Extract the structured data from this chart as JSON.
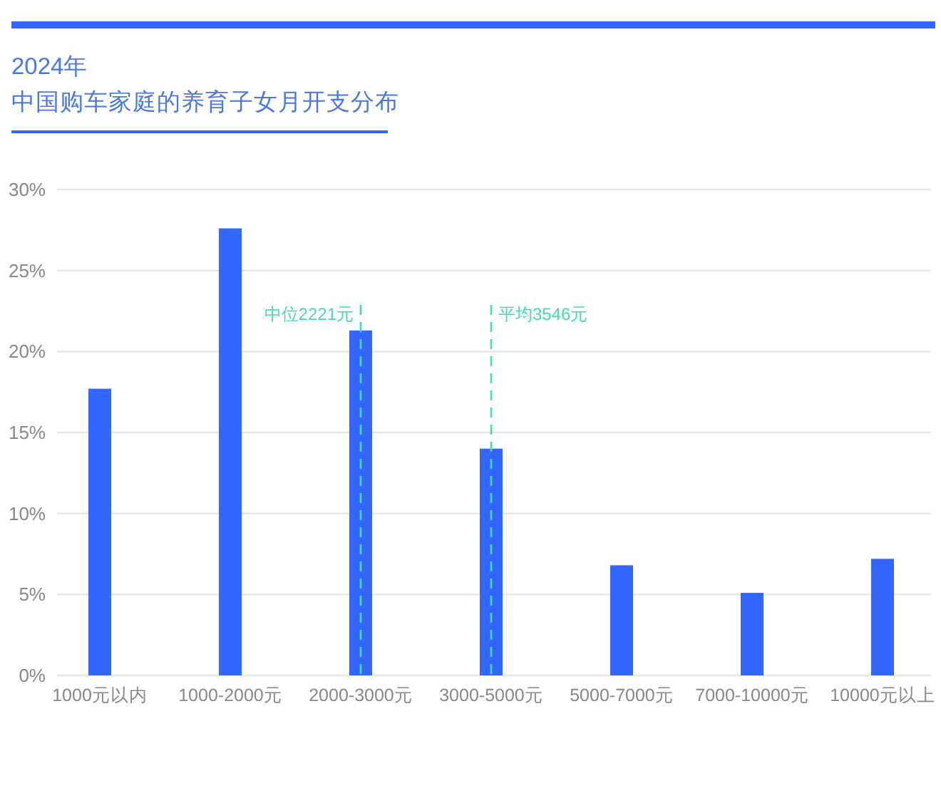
{
  "chart_data": {
    "type": "bar",
    "title": "2024年",
    "subtitle": "中国购车家庭的养育子女月开支分布",
    "categories": [
      "1000元以内",
      "1000-2000元",
      "2000-3000元",
      "3000-5000元",
      "5000-7000元",
      "7000-10000元",
      "10000元以上"
    ],
    "values": [
      17.7,
      27.6,
      21.3,
      14.0,
      6.8,
      5.1,
      7.2
    ],
    "color": "#3366ff",
    "ylim": [
      0,
      30
    ],
    "yticks": [
      {
        "value": 0,
        "label": "0%"
      },
      {
        "value": 5,
        "label": "5%"
      },
      {
        "value": 10,
        "label": "10%"
      },
      {
        "value": 15,
        "label": "15%"
      },
      {
        "value": 20,
        "label": "20%"
      },
      {
        "value": 25,
        "label": "25%"
      },
      {
        "value": 30,
        "label": "30%"
      }
    ],
    "grid": "y",
    "ref_lines": [
      {
        "axis": "x",
        "value": "2000-3000元",
        "label": "中位2221元",
        "color": "#45dcaa",
        "line_style": "dashed"
      },
      {
        "axis": "x",
        "value": "3000-5000元",
        "label": "平均3546元",
        "color": "#45dcaa",
        "line_style": "dashed"
      }
    ]
  }
}
